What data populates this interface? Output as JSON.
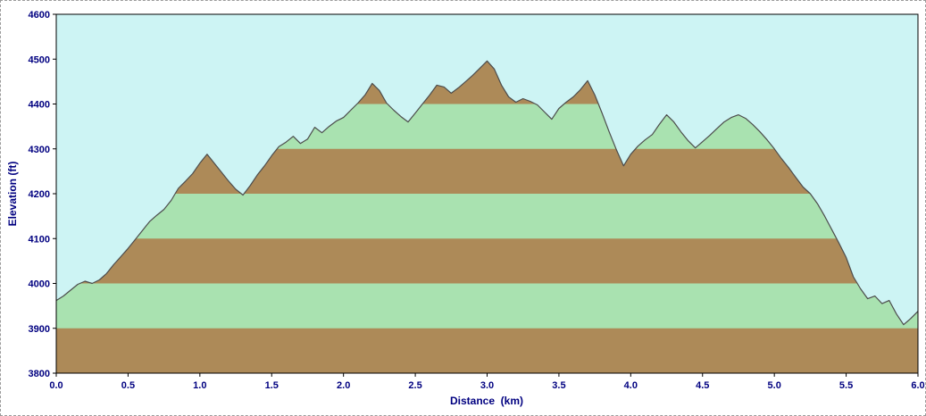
{
  "window": {
    "background": "#ffffff",
    "frame_border": "#9a9a9a"
  },
  "chart_data": {
    "type": "area",
    "title": "",
    "xlabel": "Distance  (km)",
    "ylabel": "Elevation (ft)",
    "xlim": [
      0.0,
      6.0
    ],
    "ylim": [
      3800,
      4600
    ],
    "grid": "horizontal color bands inside terrain fill, 100 ft interval",
    "legend": "none",
    "band_interval_ft": 100,
    "x_ticks": [
      0.0,
      0.5,
      1.0,
      1.5,
      2.0,
      2.5,
      3.0,
      3.5,
      4.0,
      4.5,
      5.0,
      5.5,
      6.0
    ],
    "x_tick_labels": [
      "0.0",
      "0.5",
      "1.0",
      "1.5",
      "2.0",
      "2.5",
      "3.0",
      "3.5",
      "4.0",
      "4.5",
      "5.0",
      "5.5",
      "6.0"
    ],
    "y_ticks": [
      3800,
      3900,
      4000,
      4100,
      4200,
      4300,
      4400,
      4500,
      4600
    ],
    "y_tick_labels": [
      "3800",
      "3900",
      "4000",
      "4100",
      "4200",
      "4300",
      "4400",
      "4500",
      "4600"
    ],
    "x": [
      0.0,
      0.05,
      0.1,
      0.15,
      0.2,
      0.25,
      0.3,
      0.35,
      0.4,
      0.45,
      0.5,
      0.55,
      0.6,
      0.65,
      0.7,
      0.75,
      0.8,
      0.85,
      0.9,
      0.95,
      1.0,
      1.05,
      1.1,
      1.15,
      1.2,
      1.25,
      1.3,
      1.35,
      1.4,
      1.45,
      1.5,
      1.55,
      1.6,
      1.65,
      1.7,
      1.75,
      1.8,
      1.85,
      1.9,
      1.95,
      2.0,
      2.05,
      2.1,
      2.15,
      2.2,
      2.25,
      2.3,
      2.35,
      2.4,
      2.45,
      2.5,
      2.55,
      2.6,
      2.65,
      2.7,
      2.75,
      2.8,
      2.85,
      2.9,
      2.95,
      3.0,
      3.05,
      3.1,
      3.15,
      3.2,
      3.25,
      3.3,
      3.35,
      3.4,
      3.45,
      3.5,
      3.55,
      3.6,
      3.65,
      3.7,
      3.75,
      3.8,
      3.85,
      3.9,
      3.95,
      4.0,
      4.05,
      4.1,
      4.15,
      4.2,
      4.25,
      4.3,
      4.35,
      4.4,
      4.45,
      4.5,
      4.55,
      4.6,
      4.65,
      4.7,
      4.75,
      4.8,
      4.85,
      4.9,
      4.95,
      5.0,
      5.05,
      5.1,
      5.15,
      5.2,
      5.25,
      5.3,
      5.35,
      5.4,
      5.45,
      5.5,
      5.55,
      5.6,
      5.65,
      5.7,
      5.75,
      5.8,
      5.85,
      5.9,
      5.95,
      6.0
    ],
    "elevation_ft": [
      3962,
      3972,
      3985,
      3998,
      4005,
      4000,
      4008,
      4022,
      4042,
      4060,
      4078,
      4098,
      4118,
      4138,
      4152,
      4165,
      4185,
      4212,
      4228,
      4245,
      4268,
      4288,
      4268,
      4248,
      4228,
      4210,
      4197,
      4218,
      4242,
      4262,
      4285,
      4305,
      4315,
      4328,
      4312,
      4322,
      4348,
      4336,
      4350,
      4362,
      4370,
      4386,
      4402,
      4420,
      4446,
      4430,
      4402,
      4386,
      4372,
      4360,
      4380,
      4400,
      4420,
      4442,
      4438,
      4424,
      4436,
      4450,
      4464,
      4480,
      4496,
      4478,
      4442,
      4416,
      4404,
      4412,
      4406,
      4398,
      4382,
      4366,
      4390,
      4404,
      4416,
      4432,
      4452,
      4420,
      4380,
      4338,
      4298,
      4262,
      4288,
      4306,
      4320,
      4332,
      4355,
      4376,
      4360,
      4338,
      4318,
      4302,
      4316,
      4330,
      4345,
      4360,
      4370,
      4376,
      4368,
      4354,
      4338,
      4320,
      4300,
      4278,
      4258,
      4236,
      4215,
      4200,
      4178,
      4150,
      4120,
      4090,
      4058,
      4015,
      3988,
      3966,
      3972,
      3955,
      3962,
      3932,
      3908,
      3922,
      3938
    ],
    "colors": {
      "sky": "#cdf4f4",
      "band_brown": "#ad8a58",
      "band_green": "#a9e2b0",
      "outline": "#4c4c4c",
      "axis_text": "#000080",
      "axis_line": "#000000"
    }
  }
}
